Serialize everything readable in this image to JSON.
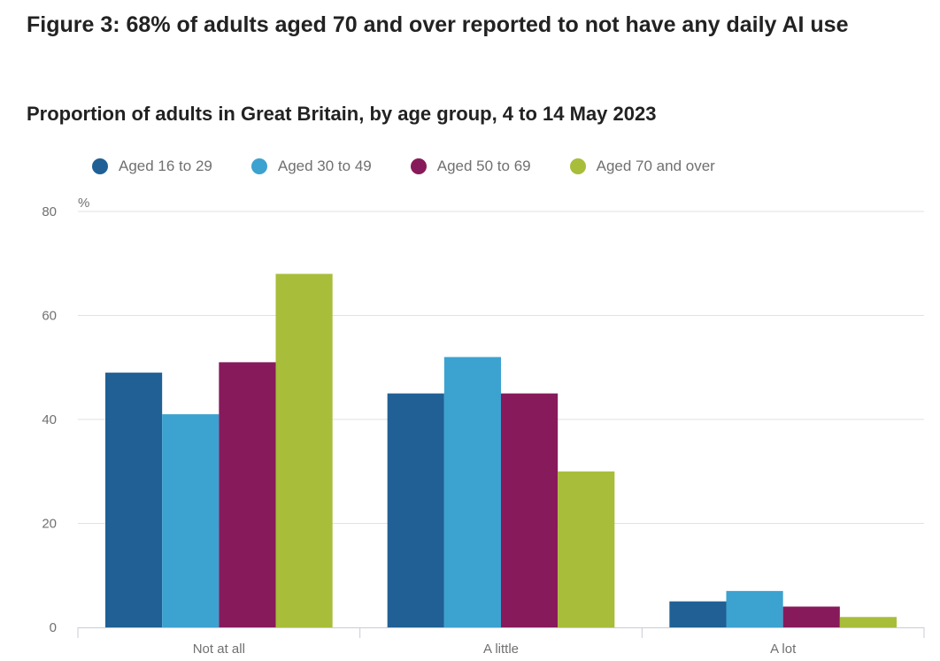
{
  "title": "Figure 3: 68% of adults aged 70 and over reported to not have any daily AI use",
  "subtitle": "Proportion of adults in Great Britain, by age group, 4 to 14 May 2023",
  "chart_data": {
    "type": "bar",
    "title": "Figure 3: 68% of adults aged 70 and over reported to not have any daily AI use",
    "subtitle": "Proportion of adults in Great Britain, by age group, 4 to 14 May 2023",
    "ylabel": "%",
    "xlabel": "",
    "ylim": [
      0,
      80
    ],
    "yticks": [
      0,
      20,
      40,
      60,
      80
    ],
    "grid": true,
    "legend_position": "top",
    "categories": [
      "Not at all",
      "A little",
      "A lot"
    ],
    "series": [
      {
        "name": "Aged 16 to 29",
        "color": "#206095",
        "values": [
          49,
          45,
          5
        ]
      },
      {
        "name": "Aged 30 to 49",
        "color": "#3ca2cf",
        "values": [
          41,
          52,
          7
        ]
      },
      {
        "name": "Aged 50 to 69",
        "color": "#871a5b",
        "values": [
          51,
          45,
          4
        ]
      },
      {
        "name": "Aged 70 and over",
        "color": "#a8bd3a",
        "values": [
          68,
          30,
          2
        ]
      }
    ]
  }
}
